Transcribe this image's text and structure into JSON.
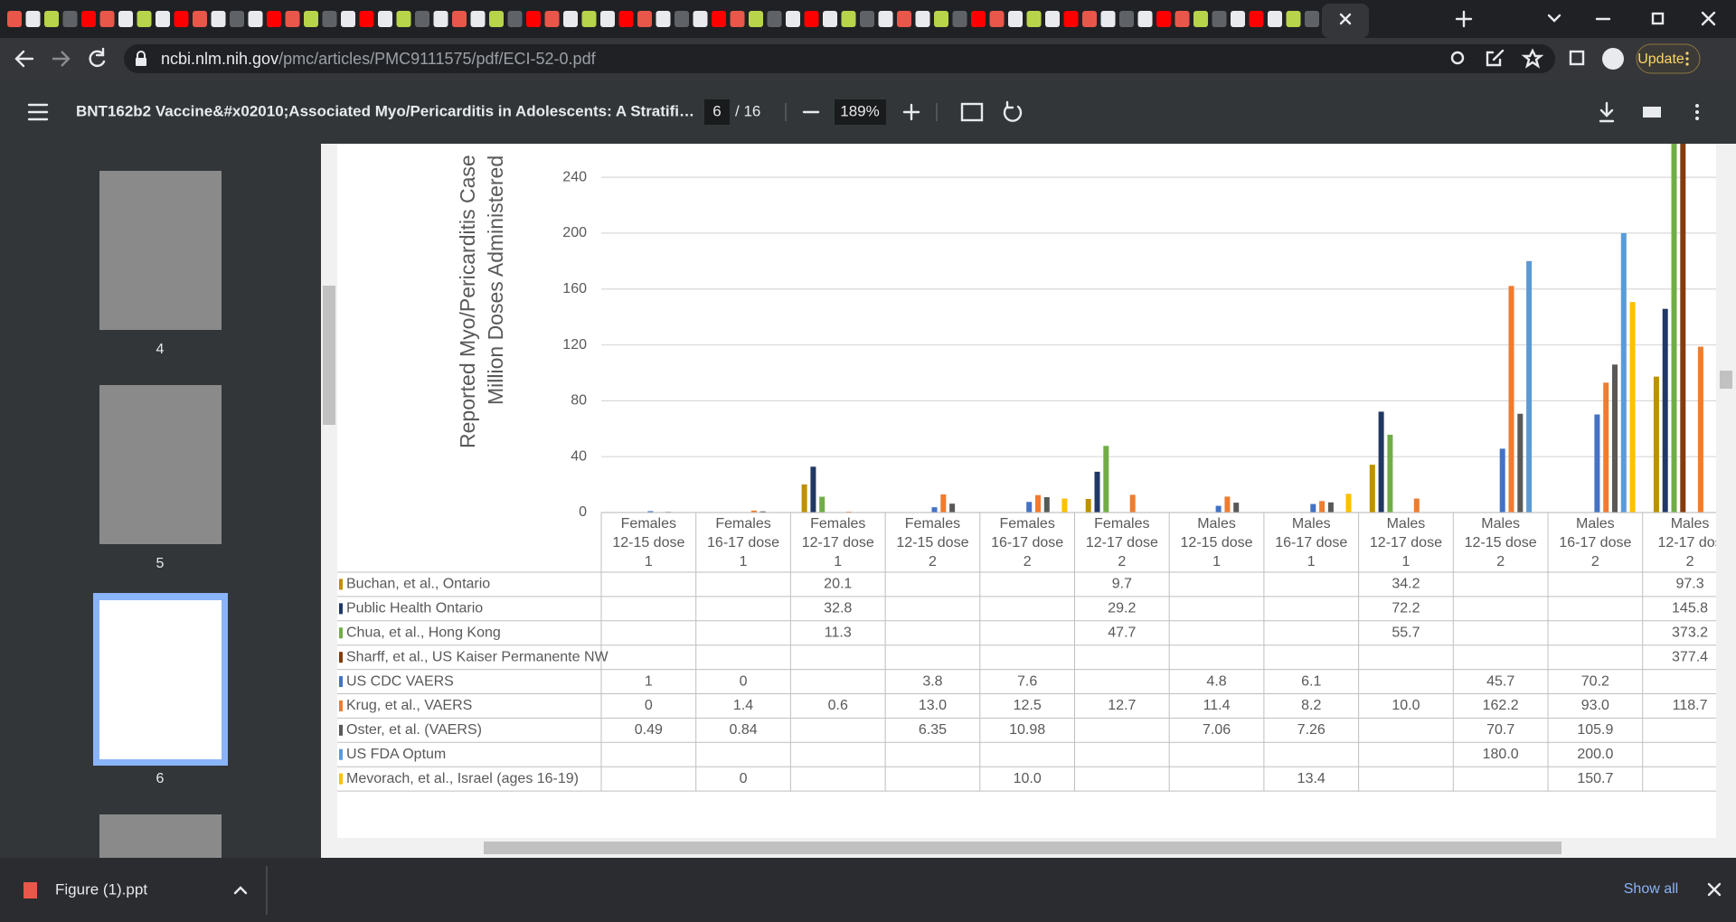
{
  "browser": {
    "url_host": "ncbi.nlm.nih.gov",
    "url_path": "/pmc/articles/PMC9111575/pdf/ECI-52-0.pdf",
    "update_button": "Update"
  },
  "pdf_toolbar": {
    "title": "BNT162b2 Vaccine&#x02010;Associated Myo/Pericarditis in Adolescents: A Stratifi…",
    "page": "6",
    "page_count": "/ 16",
    "zoom": "189%"
  },
  "thumbnails": [
    "4",
    "5",
    "6"
  ],
  "chart_data": {
    "type": "bar",
    "ylabel": [
      "Reported Myo/Pericarditis Case",
      "Million Doses Administered"
    ],
    "categories": [
      [
        "Females",
        "12-15 dose",
        "1"
      ],
      [
        "Females",
        "16-17 dose",
        "1"
      ],
      [
        "Females",
        "12-17 dose",
        "1"
      ],
      [
        "Females",
        "12-15 dose",
        "2"
      ],
      [
        "Females",
        "16-17 dose",
        "2"
      ],
      [
        "Females",
        "12-17 dose",
        "2"
      ],
      [
        "Males",
        "12-15 dose",
        "1"
      ],
      [
        "Males",
        "16-17 dose",
        "1"
      ],
      [
        "Males",
        "12-17 dose",
        "1"
      ],
      [
        "Males",
        "12-15 dose",
        "2"
      ],
      [
        "Males",
        "16-17 dose",
        "2"
      ],
      [
        "Males",
        "12-17 dos",
        "2"
      ]
    ],
    "ylim": [
      0,
      264
    ],
    "yticks": [
      0,
      40,
      80,
      120,
      160,
      200,
      240
    ],
    "grid": true,
    "series": [
      {
        "name": "Buchan, et al., Ontario",
        "color": "#bf9000",
        "values": [
          null,
          null,
          20.1,
          null,
          null,
          9.7,
          null,
          null,
          34.2,
          null,
          null,
          97.3
        ],
        "value_labels": [
          null,
          null,
          "20.1",
          null,
          null,
          "9.7",
          null,
          null,
          "34.2",
          null,
          null,
          "97.3"
        ]
      },
      {
        "name": "Public Health Ontario",
        "color": "#203864",
        "values": [
          null,
          null,
          32.8,
          null,
          null,
          29.2,
          null,
          null,
          72.2,
          null,
          null,
          145.8
        ],
        "value_labels": [
          null,
          null,
          "32.8",
          null,
          null,
          "29.2",
          null,
          null,
          "72.2",
          null,
          null,
          "145.8"
        ]
      },
      {
        "name": "Chua, et al., Hong Kong",
        "color": "#70ad47",
        "values": [
          null,
          null,
          11.3,
          null,
          null,
          47.7,
          null,
          null,
          55.7,
          null,
          null,
          373.2
        ],
        "value_labels": [
          null,
          null,
          "11.3",
          null,
          null,
          "47.7",
          null,
          null,
          "55.7",
          null,
          null,
          "373.2"
        ]
      },
      {
        "name": "Sharff, et al., US Kaiser Permanente NW",
        "color": "#843c0c",
        "values": [
          null,
          null,
          null,
          null,
          null,
          null,
          null,
          null,
          null,
          null,
          null,
          377.4
        ],
        "value_labels": [
          null,
          null,
          null,
          null,
          null,
          null,
          null,
          null,
          null,
          null,
          null,
          "377.4"
        ]
      },
      {
        "name": "US CDC VAERS",
        "color": "#4472c4",
        "values": [
          1,
          0,
          null,
          3.8,
          7.6,
          null,
          4.8,
          6.1,
          null,
          45.7,
          70.2,
          null
        ],
        "value_labels": [
          "1",
          "0",
          null,
          "3.8",
          "7.6",
          null,
          "4.8",
          "6.1",
          null,
          "45.7",
          "70.2",
          null
        ]
      },
      {
        "name": "Krug, et al., VAERS",
        "color": "#ed7d31",
        "values": [
          0,
          1.4,
          0.6,
          13.0,
          12.5,
          12.7,
          11.4,
          8.2,
          10.0,
          162.2,
          93.0,
          118.7
        ],
        "value_labels": [
          "0",
          "1.4",
          "0.6",
          "13.0",
          "12.5",
          "12.7",
          "11.4",
          "8.2",
          "10.0",
          "162.2",
          "93.0",
          "118.7"
        ]
      },
      {
        "name": "Oster, et al.  (VAERS)",
        "color": "#595959",
        "values": [
          0.49,
          0.84,
          null,
          6.35,
          10.98,
          null,
          7.06,
          7.26,
          null,
          70.7,
          105.9,
          null
        ],
        "value_labels": [
          "0.49",
          "0.84",
          null,
          "6.35",
          "10.98",
          null,
          "7.06",
          "7.26",
          null,
          "70.7",
          "105.9",
          null
        ]
      },
      {
        "name": "US FDA Optum",
        "color": "#5b9bd5",
        "values": [
          null,
          null,
          null,
          null,
          null,
          null,
          null,
          null,
          null,
          180.0,
          200.0,
          null
        ],
        "value_labels": [
          null,
          null,
          null,
          null,
          null,
          null,
          null,
          null,
          null,
          "180.0",
          "200.0",
          null
        ]
      },
      {
        "name": "Mevorach, et al., Israel (ages 16-19)",
        "color": "#ffc000",
        "values": [
          null,
          0,
          null,
          null,
          10.0,
          null,
          null,
          13.4,
          null,
          null,
          150.7,
          null
        ],
        "value_labels": [
          null,
          "0",
          null,
          null,
          "10.0",
          null,
          null,
          "13.4",
          null,
          null,
          "150.7",
          null
        ]
      }
    ]
  },
  "download_bar": {
    "file": "Figure (1).ppt",
    "show_all": "Show all"
  }
}
